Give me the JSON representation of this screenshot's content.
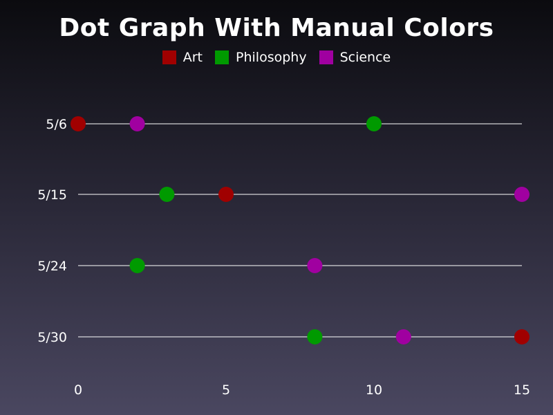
{
  "chart_data": {
    "type": "scatter",
    "title": "Dot Graph With Manual Colors",
    "categories": [
      "5/6",
      "5/15",
      "5/24",
      "5/30"
    ],
    "xlim": [
      0,
      15
    ],
    "xticks": [
      "0",
      "5",
      "10",
      "15"
    ],
    "legend_position": "top-center",
    "series": [
      {
        "name": "Art",
        "color": "#a00000",
        "values": [
          0,
          5,
          null,
          15
        ]
      },
      {
        "name": "Philosophy",
        "color": "#009a00",
        "values": [
          10,
          3,
          2,
          8
        ]
      },
      {
        "name": "Science",
        "color": "#a000a0",
        "values": [
          2,
          15,
          8,
          11
        ]
      }
    ]
  }
}
